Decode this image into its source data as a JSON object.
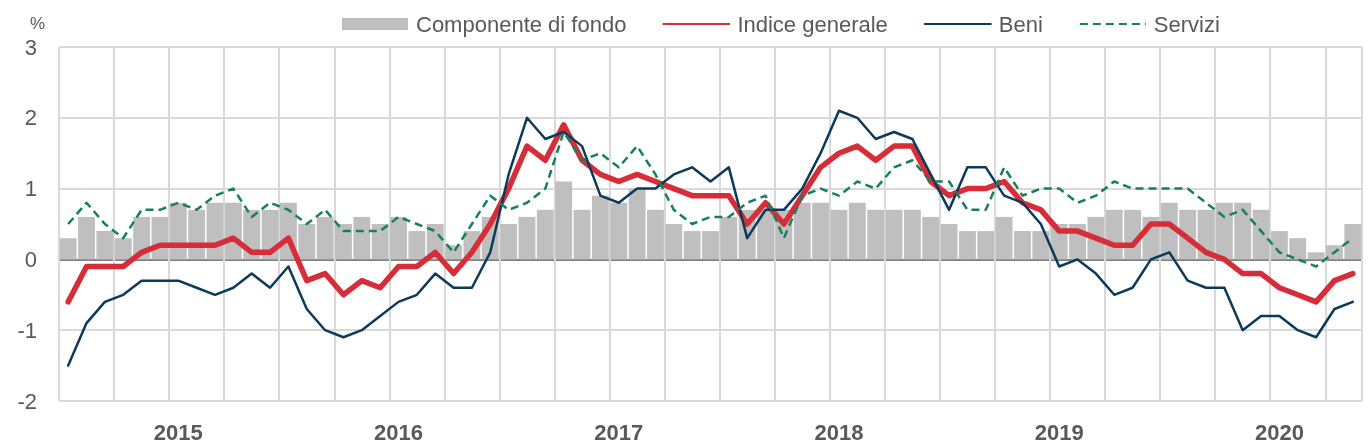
{
  "chart_data": {
    "type": "bar",
    "ylabel": "%",
    "categories": [
      null,
      null,
      null,
      null,
      null,
      null,
      "2015",
      null,
      null,
      null,
      null,
      null,
      null,
      null,
      null,
      null,
      null,
      null,
      "2016",
      null,
      null,
      null,
      null,
      null,
      null,
      null,
      null,
      null,
      null,
      null,
      "2017",
      null,
      null,
      null,
      null,
      null,
      null,
      null,
      null,
      null,
      null,
      null,
      "2018",
      null,
      null,
      null,
      null,
      null,
      null,
      null,
      null,
      null,
      null,
      null,
      "2019",
      null,
      null,
      null,
      null,
      null,
      null,
      null,
      null,
      null,
      null,
      null,
      "2020",
      null,
      null,
      null,
      null
    ],
    "series": [
      {
        "name": "Componente di fondo",
        "color": "#bfbfbf",
        "values": [
          0.3,
          0.6,
          0.4,
          0.3,
          0.6,
          0.6,
          0.8,
          0.7,
          0.8,
          0.8,
          0.7,
          0.7,
          0.8,
          0.5,
          0.6,
          0.5,
          0.6,
          0.5,
          0.6,
          0.4,
          0.5,
          0.2,
          0.4,
          0.6,
          0.5,
          0.6,
          0.7,
          1.1,
          0.7,
          0.9,
          0.8,
          1.0,
          0.7,
          0.5,
          0.4,
          0.4,
          0.6,
          0.7,
          0.7,
          0.7,
          0.8,
          0.8,
          0.7,
          0.8,
          0.7,
          0.7,
          0.7,
          0.6,
          0.5,
          0.4,
          0.4,
          0.6,
          0.4,
          0.4,
          0.5,
          0.5,
          0.6,
          0.7,
          0.7,
          0.6,
          0.8,
          0.7,
          0.7,
          0.8,
          0.8,
          0.7,
          0.4,
          0.3,
          0.1,
          0.2,
          0.5
        ]
      },
      {
        "name": "Indice generale",
        "type": "line",
        "color": "#d62d39",
        "values": [
          -0.6,
          -0.1,
          -0.1,
          -0.1,
          0.1,
          0.2,
          0.2,
          0.2,
          0.2,
          0.3,
          0.1,
          0.1,
          0.3,
          -0.3,
          -0.2,
          -0.5,
          -0.3,
          -0.4,
          -0.1,
          -0.1,
          0.1,
          -0.2,
          0.1,
          0.5,
          1.0,
          1.6,
          1.4,
          1.9,
          1.4,
          1.2,
          1.1,
          1.2,
          1.1,
          1.0,
          0.9,
          0.9,
          0.9,
          0.5,
          0.8,
          0.5,
          0.9,
          1.3,
          1.5,
          1.6,
          1.4,
          1.6,
          1.6,
          1.1,
          0.9,
          1.0,
          1.0,
          1.1,
          0.8,
          0.7,
          0.4,
          0.4,
          0.3,
          0.2,
          0.2,
          0.5,
          0.5,
          0.3,
          0.1,
          0.0,
          -0.2,
          -0.2,
          -0.4,
          -0.5,
          -0.6,
          -0.3,
          -0.2
        ]
      },
      {
        "name": "Beni",
        "type": "line",
        "color": "#0b3a5b",
        "values": [
          -1.5,
          -0.9,
          -0.6,
          -0.5,
          -0.3,
          -0.3,
          -0.3,
          -0.4,
          -0.5,
          -0.4,
          -0.2,
          -0.4,
          -0.1,
          -0.7,
          -1.0,
          -1.1,
          -1.0,
          -0.8,
          -0.6,
          -0.5,
          -0.2,
          -0.4,
          -0.4,
          0.1,
          1.2,
          2.0,
          1.7,
          1.8,
          1.6,
          0.9,
          0.8,
          1.0,
          1.0,
          1.2,
          1.3,
          1.1,
          1.3,
          0.3,
          0.7,
          0.7,
          1.0,
          1.5,
          2.1,
          2.0,
          1.7,
          1.8,
          1.7,
          1.2,
          0.7,
          1.3,
          1.3,
          0.9,
          0.8,
          0.5,
          -0.1,
          0.0,
          -0.2,
          -0.5,
          -0.4,
          0.0,
          0.1,
          -0.3,
          -0.4,
          -0.4,
          -1.0,
          -0.8,
          -0.8,
          -1.0,
          -1.1,
          -0.7,
          -0.6
        ]
      },
      {
        "name": "Servizi",
        "type": "line",
        "color": "#16805e",
        "line_style": "dashed",
        "values": [
          0.5,
          0.8,
          0.5,
          0.3,
          0.7,
          0.7,
          0.8,
          0.7,
          0.9,
          1.0,
          0.6,
          0.8,
          0.7,
          0.5,
          0.7,
          0.4,
          0.4,
          0.4,
          0.6,
          0.5,
          0.4,
          0.1,
          0.5,
          0.9,
          0.7,
          0.8,
          1.0,
          1.8,
          1.4,
          1.5,
          1.3,
          1.6,
          1.2,
          0.7,
          0.5,
          0.6,
          0.6,
          0.8,
          0.9,
          0.3,
          0.9,
          1.0,
          0.9,
          1.1,
          1.0,
          1.3,
          1.4,
          1.1,
          1.1,
          0.7,
          0.7,
          1.3,
          0.9,
          1.0,
          1.0,
          0.8,
          0.9,
          1.1,
          1.0,
          1.0,
          1.0,
          1.0,
          0.8,
          0.6,
          0.7,
          0.4,
          0.1,
          0.0,
          -0.1,
          0.1,
          0.3
        ]
      }
    ],
    "ylim": [
      -2,
      3
    ],
    "yticks": [
      -2,
      -1,
      0,
      1,
      2,
      3
    ],
    "grid": true,
    "legend": "top"
  }
}
